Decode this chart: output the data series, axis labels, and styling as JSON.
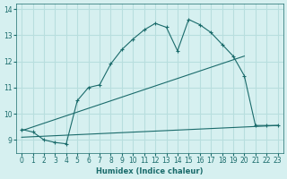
{
  "xlabel": "Humidex (Indice chaleur)",
  "ylabel": "",
  "bg_color": "#d6f0f0",
  "grid_color": "#b8dede",
  "line_color": "#1a6b6b",
  "xlim": [
    -0.5,
    23.5
  ],
  "ylim": [
    8.5,
    14.2
  ],
  "yticks": [
    9,
    10,
    11,
    12,
    13,
    14
  ],
  "xticks": [
    0,
    1,
    2,
    3,
    4,
    5,
    6,
    7,
    8,
    9,
    10,
    11,
    12,
    13,
    14,
    15,
    16,
    17,
    18,
    19,
    20,
    21,
    22,
    23
  ],
  "line1_x": [
    0,
    1,
    2,
    3,
    4,
    5,
    6,
    7,
    8,
    9,
    10,
    11,
    12,
    13,
    14,
    15,
    16,
    17,
    18,
    19,
    20,
    21,
    22,
    23
  ],
  "line1_y": [
    9.4,
    9.3,
    9.0,
    8.9,
    8.85,
    10.5,
    11.0,
    11.1,
    11.9,
    12.45,
    12.85,
    13.2,
    13.45,
    13.3,
    12.4,
    13.6,
    13.4,
    13.1,
    12.65,
    12.2,
    11.45,
    9.55,
    9.55,
    9.55
  ],
  "line2_x": [
    0,
    20
  ],
  "line2_y": [
    9.35,
    12.2
  ],
  "line3_x": [
    0,
    23
  ],
  "line3_y": [
    9.1,
    9.55
  ]
}
